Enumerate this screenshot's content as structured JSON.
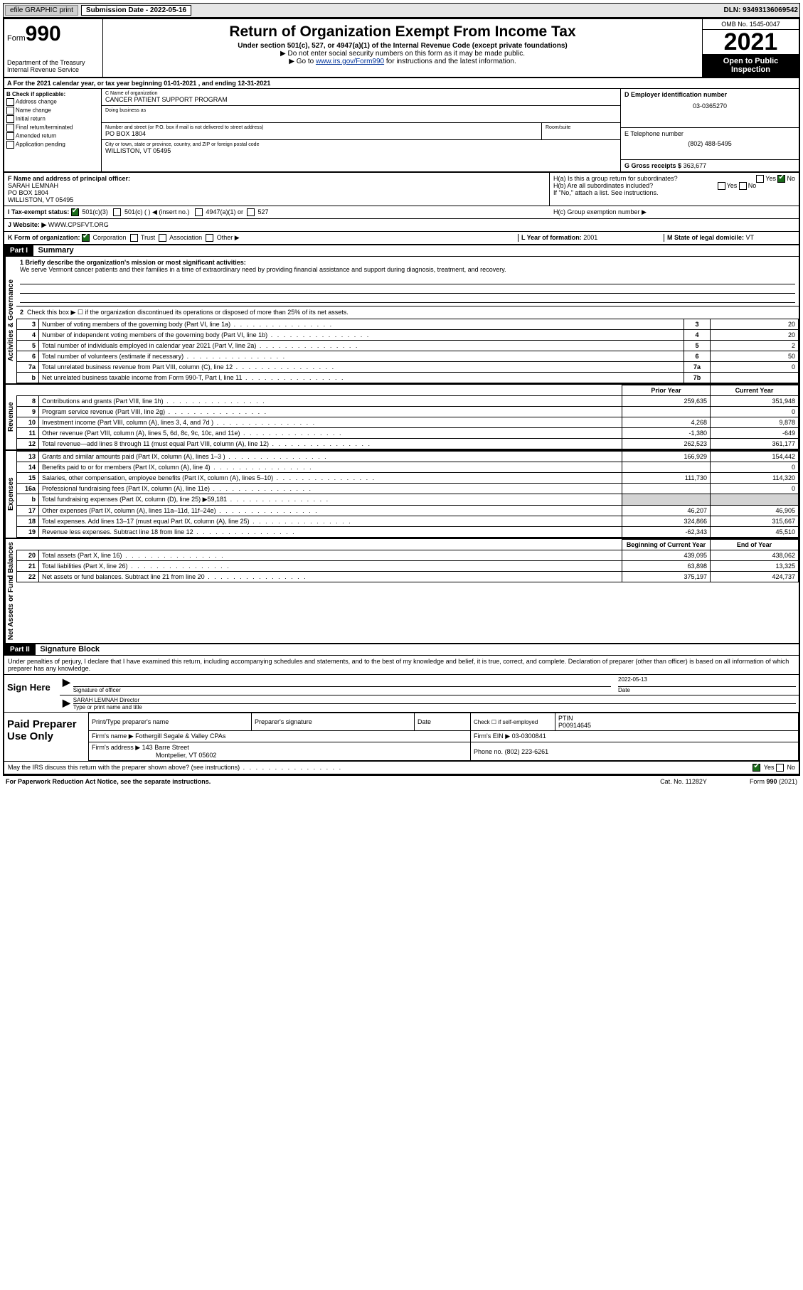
{
  "topbar": {
    "efile": "efile GRAPHIC print",
    "sub_label": "Submission Date - 2022-05-16",
    "dln": "DLN: 93493136069542"
  },
  "header": {
    "form_word": "Form",
    "form_num": "990",
    "dept": "Department of the Treasury",
    "irs": "Internal Revenue Service",
    "title": "Return of Organization Exempt From Income Tax",
    "sub": "Under section 501(c), 527, or 4947(a)(1) of the Internal Revenue Code (except private foundations)",
    "note1": "▶ Do not enter social security numbers on this form as it may be made public.",
    "note2_pre": "▶ Go to ",
    "note2_link": "www.irs.gov/Form990",
    "note2_post": " for instructions and the latest information.",
    "omb": "OMB No. 1545-0047",
    "year": "2021",
    "open": "Open to Public Inspection"
  },
  "rowA": "A For the 2021 calendar year, or tax year beginning 01-01-2021   , and ending 12-31-2021",
  "boxB": {
    "title": "B Check if applicable:",
    "items": [
      "Address change",
      "Name change",
      "Initial return",
      "Final return/terminated",
      "Amended return",
      "Application pending"
    ]
  },
  "boxC": {
    "lbl_name": "C Name of organization",
    "org": "CANCER PATIENT SUPPORT PROGRAM",
    "dba_lbl": "Doing business as",
    "addr_lbl": "Number and street (or P.O. box if mail is not delivered to street address)",
    "room_lbl": "Room/suite",
    "addr": "PO BOX 1804",
    "city_lbl": "City or town, state or province, country, and ZIP or foreign postal code",
    "city": "WILLISTON, VT  05495"
  },
  "boxD": {
    "lbl": "D Employer identification number",
    "val": "03-0365270"
  },
  "boxE": {
    "lbl": "E Telephone number",
    "val": "(802) 488-5495"
  },
  "boxG": {
    "lbl": "G Gross receipts $",
    "val": "363,677"
  },
  "boxF": {
    "lbl": "F Name and address of principal officer:",
    "name": "SARAH LEMNAH",
    "addr1": "PO BOX 1804",
    "addr2": "WILLISTON, VT  05495"
  },
  "boxH": {
    "ha": "H(a)  Is this a group return for subordinates?",
    "hb": "H(b)  Are all subordinates included?",
    "hb_note": "If \"No,\" attach a list. See instructions.",
    "hc": "H(c)  Group exemption number ▶"
  },
  "lineI": {
    "lbl": "I   Tax-exempt status:",
    "opts": [
      "501(c)(3)",
      "501(c) (  ) ◀ (insert no.)",
      "4947(a)(1) or",
      "527"
    ]
  },
  "lineJ": {
    "lbl": "J   Website: ▶",
    "val": "WWW.CPSFVT.ORG"
  },
  "lineK": {
    "lbl": "K Form of organization:",
    "opts": [
      "Corporation",
      "Trust",
      "Association",
      "Other ▶"
    ],
    "l_lbl": "L Year of formation:",
    "l_val": "2001",
    "m_lbl": "M State of legal domicile:",
    "m_val": "VT"
  },
  "part1": {
    "hdr": "Part I",
    "title": "Summary"
  },
  "mission": {
    "q": "1   Briefly describe the organization's mission or most significant activities:",
    "text": "We serve Vermont cancer patients and their families in a time of extraordinary need by providing financial assistance and support during diagnosis, treatment, and recovery."
  },
  "gov": {
    "l2": "Check this box ▶ ☐ if the organization discontinued its operations or disposed of more than 25% of its net assets.",
    "rows": [
      {
        "n": "3",
        "d": "Number of voting members of the governing body (Part VI, line 1a)",
        "box": "3",
        "v": "20"
      },
      {
        "n": "4",
        "d": "Number of independent voting members of the governing body (Part VI, line 1b)",
        "box": "4",
        "v": "20"
      },
      {
        "n": "5",
        "d": "Total number of individuals employed in calendar year 2021 (Part V, line 2a)",
        "box": "5",
        "v": "2"
      },
      {
        "n": "6",
        "d": "Total number of volunteers (estimate if necessary)",
        "box": "6",
        "v": "50"
      },
      {
        "n": "7a",
        "d": "Total unrelated business revenue from Part VIII, column (C), line 12",
        "box": "7a",
        "v": "0"
      },
      {
        "n": "b",
        "d": "Net unrelated business taxable income from Form 990-T, Part I, line 11",
        "box": "7b",
        "v": ""
      }
    ]
  },
  "cols": {
    "prior": "Prior Year",
    "current": "Current Year"
  },
  "revenue": [
    {
      "n": "8",
      "d": "Contributions and grants (Part VIII, line 1h)",
      "p": "259,635",
      "c": "351,948"
    },
    {
      "n": "9",
      "d": "Program service revenue (Part VIII, line 2g)",
      "p": "",
      "c": "0"
    },
    {
      "n": "10",
      "d": "Investment income (Part VIII, column (A), lines 3, 4, and 7d )",
      "p": "4,268",
      "c": "9,878"
    },
    {
      "n": "11",
      "d": "Other revenue (Part VIII, column (A), lines 5, 6d, 8c, 9c, 10c, and 11e)",
      "p": "-1,380",
      "c": "-649"
    },
    {
      "n": "12",
      "d": "Total revenue—add lines 8 through 11 (must equal Part VIII, column (A), line 12)",
      "p": "262,523",
      "c": "361,177"
    }
  ],
  "expenses": [
    {
      "n": "13",
      "d": "Grants and similar amounts paid (Part IX, column (A), lines 1–3 )",
      "p": "166,929",
      "c": "154,442"
    },
    {
      "n": "14",
      "d": "Benefits paid to or for members (Part IX, column (A), line 4)",
      "p": "",
      "c": "0"
    },
    {
      "n": "15",
      "d": "Salaries, other compensation, employee benefits (Part IX, column (A), lines 5–10)",
      "p": "111,730",
      "c": "114,320"
    },
    {
      "n": "16a",
      "d": "Professional fundraising fees (Part IX, column (A), line 11e)",
      "p": "",
      "c": "0"
    },
    {
      "n": "b",
      "d": "Total fundraising expenses (Part IX, column (D), line 25) ▶59,181",
      "p": "GRAY",
      "c": "GRAY"
    },
    {
      "n": "17",
      "d": "Other expenses (Part IX, column (A), lines 11a–11d, 11f–24e)",
      "p": "46,207",
      "c": "46,905"
    },
    {
      "n": "18",
      "d": "Total expenses. Add lines 13–17 (must equal Part IX, column (A), line 25)",
      "p": "324,866",
      "c": "315,667"
    },
    {
      "n": "19",
      "d": "Revenue less expenses. Subtract line 18 from line 12",
      "p": "-62,343",
      "c": "45,510"
    }
  ],
  "netcols": {
    "begin": "Beginning of Current Year",
    "end": "End of Year"
  },
  "net": [
    {
      "n": "20",
      "d": "Total assets (Part X, line 16)",
      "p": "439,095",
      "c": "438,062"
    },
    {
      "n": "21",
      "d": "Total liabilities (Part X, line 26)",
      "p": "63,898",
      "c": "13,325"
    },
    {
      "n": "22",
      "d": "Net assets or fund balances. Subtract line 21 from line 20",
      "p": "375,197",
      "c": "424,737"
    }
  ],
  "part2": {
    "hdr": "Part II",
    "title": "Signature Block"
  },
  "penalties": "Under penalties of perjury, I declare that I have examined this return, including accompanying schedules and statements, and to the best of my knowledge and belief, it is true, correct, and complete. Declaration of preparer (other than officer) is based on all information of which preparer has any knowledge.",
  "sign": {
    "here": "Sign Here",
    "sig_lbl": "Signature of officer",
    "date_lbl": "Date",
    "date": "2022-05-13",
    "name": "SARAH LEMNAH  Director",
    "name_lbl": "Type or print name and title"
  },
  "paid": {
    "title": "Paid Preparer Use Only",
    "h1": "Print/Type preparer's name",
    "h2": "Preparer's signature",
    "h3": "Date",
    "h4_pre": "Check ☐ if self-employed",
    "h5": "PTIN",
    "ptin": "P00914645",
    "firm_lbl": "Firm's name    ▶",
    "firm": "Fothergill Segale & Valley CPAs",
    "ein_lbl": "Firm's EIN ▶",
    "ein": "03-0300841",
    "addr_lbl": "Firm's address ▶",
    "addr1": "143 Barre Street",
    "addr2": "Montpelier, VT  05602",
    "phone_lbl": "Phone no.",
    "phone": "(802) 223-6261"
  },
  "discuss": "May the IRS discuss this return with the preparer shown above? (see instructions)",
  "footer": {
    "pra": "For Paperwork Reduction Act Notice, see the separate instructions.",
    "cat": "Cat. No. 11282Y",
    "form": "Form 990 (2021)"
  },
  "vlabels": {
    "gov": "Activities & Governance",
    "rev": "Revenue",
    "exp": "Expenses",
    "net": "Net Assets or Fund Balances"
  }
}
